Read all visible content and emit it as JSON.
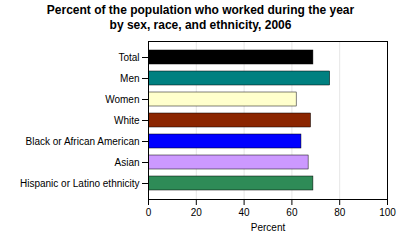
{
  "chart_data": {
    "type": "bar",
    "orientation": "horizontal",
    "title": "Percent of the population who worked during the year",
    "subtitle": "by sex, race, and ethnicity, 2006",
    "categories": [
      "Total",
      "Men",
      "Women",
      "White",
      "Black or African American",
      "Asian",
      "Hispanic or Latino ethnicity"
    ],
    "values": [
      69,
      76,
      62,
      68,
      64,
      67,
      69
    ],
    "colors": [
      "#000000",
      "#008080",
      "#ffffcc",
      "#8b2500",
      "#0000ff",
      "#cc99ff",
      "#2e8b57"
    ],
    "xlabel": "Percent",
    "xlim": [
      0,
      100
    ],
    "xticks": [
      0,
      20,
      40,
      60,
      80,
      100
    ],
    "grid": true
  }
}
